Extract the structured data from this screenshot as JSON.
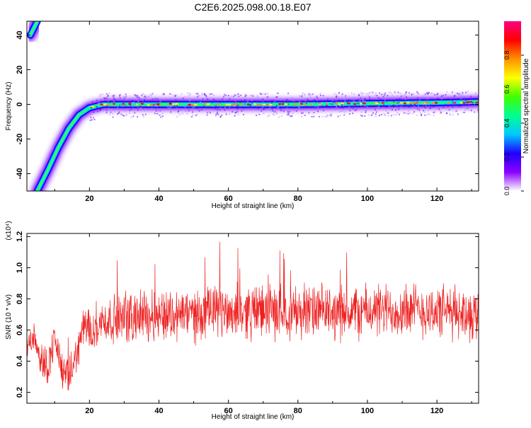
{
  "title": "C2E6.2025.098.00.18.E07",
  "colors": {
    "snr_line": "#ee2222",
    "frame": "#000000"
  },
  "chart_data": [
    {
      "type": "heatmap",
      "xlabel": "Height of straight line (km)",
      "ylabel": "Frequency (Hz)",
      "xlim": [
        2,
        132
      ],
      "ylim": [
        -50,
        48
      ],
      "xticks": [
        "20",
        "40",
        "60",
        "80",
        "100",
        "120"
      ],
      "yticks": [
        "40",
        "20",
        "0",
        "-20",
        "-40"
      ],
      "colorbar": {
        "label": "Normalized spectral amplitude",
        "range": [
          0,
          1
        ],
        "ticks": [
          "0.0",
          "0.2",
          "0.4",
          "0.6",
          "0.8"
        ],
        "colormap": [
          "#ffffff",
          "#8a00ff",
          "#2000ff",
          "#00c8ff",
          "#00ff90",
          "#40ff00",
          "#ffff00",
          "#ff9000",
          "#ff0000",
          "#ff0080"
        ]
      },
      "ridge": [
        {
          "x": 3,
          "y": 40
        },
        {
          "x": 5,
          "y": 48
        },
        {
          "x": 5,
          "y": -50
        },
        {
          "x": 8,
          "y": -38
        },
        {
          "x": 11,
          "y": -25
        },
        {
          "x": 14,
          "y": -14
        },
        {
          "x": 17,
          "y": -6
        },
        {
          "x": 20,
          "y": -2
        },
        {
          "x": 24,
          "y": 0
        },
        {
          "x": 40,
          "y": 0
        },
        {
          "x": 60,
          "y": 0
        },
        {
          "x": 80,
          "y": 0
        },
        {
          "x": 100,
          "y": 0.5
        },
        {
          "x": 120,
          "y": 1
        },
        {
          "x": 132,
          "y": 1.5
        }
      ]
    },
    {
      "type": "line",
      "xlabel": "Height of straight line (km)",
      "ylabel": "SNR (10 * v/v)",
      "scale_label": "(x10⁴)",
      "xlim": [
        2,
        132
      ],
      "ylim": [
        0.13,
        1.22
      ],
      "xticks": [
        "20",
        "40",
        "60",
        "80",
        "100",
        "120"
      ],
      "yticks": [
        "0.2",
        "0.4",
        "0.6",
        "0.8",
        "1.0",
        "1.2"
      ],
      "series": [
        {
          "x": [
            2,
            4,
            6,
            8,
            10,
            12,
            14,
            16,
            18,
            20,
            25,
            30,
            40,
            50,
            60,
            70,
            80,
            90,
            100,
            110,
            120,
            132
          ],
          "y": [
            0.48,
            0.58,
            0.42,
            0.36,
            0.55,
            0.35,
            0.28,
            0.42,
            0.6,
            0.62,
            0.66,
            0.68,
            0.7,
            0.7,
            0.72,
            0.72,
            0.72,
            0.71,
            0.72,
            0.73,
            0.72,
            0.7
          ]
        }
      ]
    }
  ]
}
